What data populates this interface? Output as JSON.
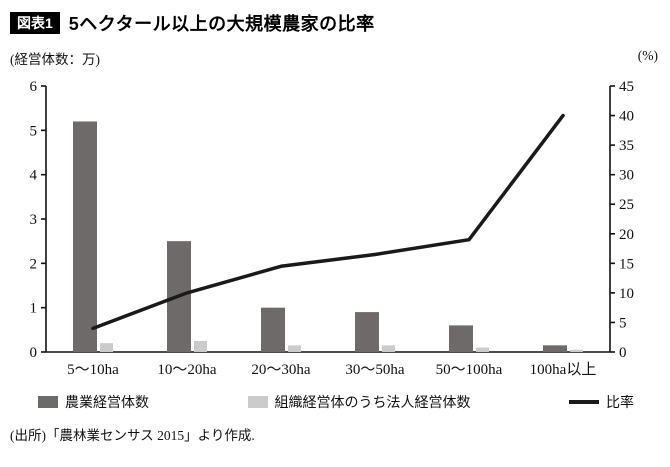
{
  "header": {
    "badge": "図表1",
    "title": "5ヘクタール以上の大規模農家の比率"
  },
  "chart_data": {
    "type": "bar",
    "subtype": "bar+line combo, dual axis",
    "categories": [
      "5〜10ha",
      "10〜20ha",
      "20〜30ha",
      "30〜50ha",
      "50〜100ha",
      "100ha以上"
    ],
    "series": [
      {
        "name": "農業経営体数",
        "type": "bar",
        "axis": "left",
        "color": "#6e6a69",
        "values": [
          5.2,
          2.5,
          1.0,
          0.9,
          0.6,
          0.15
        ]
      },
      {
        "name": "組織経営体のうち法人経営体数",
        "type": "bar",
        "axis": "left",
        "color": "#cbcbcc",
        "values": [
          0.2,
          0.25,
          0.15,
          0.15,
          0.1,
          0.05
        ]
      },
      {
        "name": "比率",
        "type": "line",
        "axis": "right",
        "color": "#1a1a1a",
        "values": [
          4,
          10,
          14.5,
          16.5,
          19,
          40
        ]
      }
    ],
    "left_axis": {
      "label": "(経営体数：万)",
      "min": 0,
      "max": 6,
      "step": 1
    },
    "right_axis": {
      "label": "(%)",
      "min": 0,
      "max": 45,
      "step": 5
    },
    "grid": false,
    "legend_position": "bottom"
  },
  "source": "(出所)「農林業センサス 2015」より作成."
}
